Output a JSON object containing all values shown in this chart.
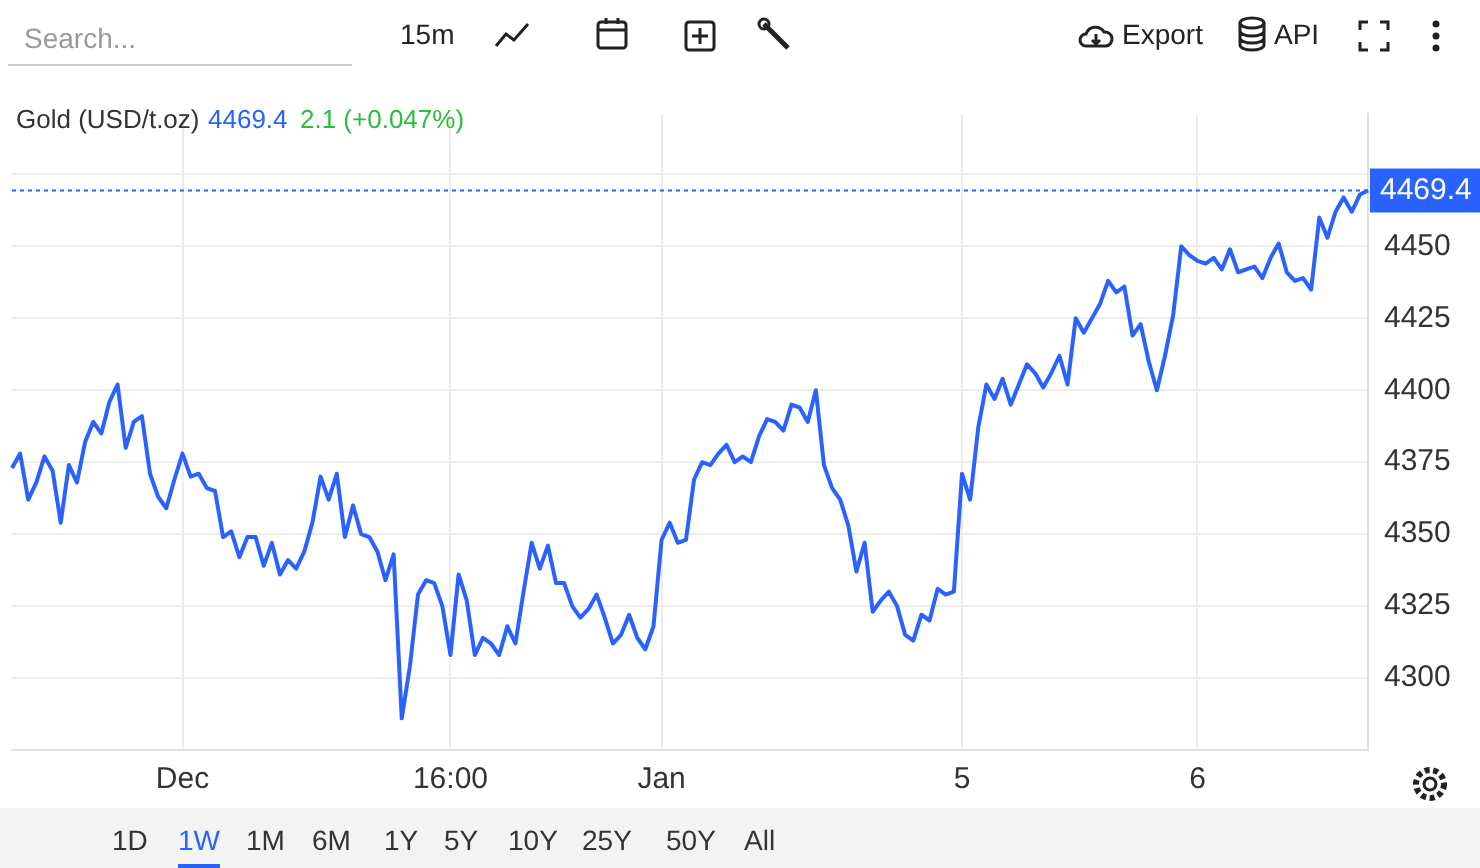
{
  "chart_data": {
    "type": "line",
    "categories": [
      null,
      null,
      null,
      null,
      null,
      null,
      null,
      null,
      null,
      null,
      null,
      null,
      null,
      null,
      null,
      null,
      null,
      null,
      null,
      null,
      null,
      "Dec",
      null,
      null,
      null,
      null,
      null,
      null,
      null,
      null,
      null,
      null,
      null,
      null,
      null,
      null,
      null,
      null,
      null,
      null,
      null,
      null,
      null,
      null,
      null,
      null,
      null,
      null,
      null,
      null,
      null,
      null,
      null,
      null,
      "16:00",
      null,
      null,
      null,
      null,
      null,
      null,
      null,
      null,
      null,
      null,
      null,
      null,
      null,
      null,
      null,
      null,
      null,
      null,
      null,
      null,
      null,
      null,
      null,
      null,
      null,
      "Jan",
      null,
      null,
      null,
      null,
      null,
      null,
      null,
      null,
      null,
      null,
      null,
      null,
      null,
      null,
      null,
      null,
      null,
      null,
      null,
      null,
      null,
      null,
      null,
      null,
      null,
      null,
      null,
      null,
      null,
      null,
      null,
      null,
      null,
      null,
      null,
      null,
      "5",
      null,
      null,
      null,
      null,
      null,
      null,
      null,
      null,
      null,
      null,
      null,
      null,
      null,
      null,
      null,
      null,
      null,
      null,
      null,
      null,
      null,
      null,
      null,
      null,
      null,
      null,
      null,
      null,
      "6",
      null,
      null,
      null,
      null,
      null,
      null,
      null,
      null,
      null,
      null,
      null,
      null,
      null,
      null,
      null,
      null,
      null,
      null,
      null,
      null,
      null
    ],
    "values": [
      4373,
      4378,
      4362,
      4368,
      4377,
      4372,
      4354,
      4374,
      4368,
      4382,
      4389,
      4385,
      4396,
      4402,
      4380,
      4389,
      4391,
      4371,
      4363,
      4359,
      4369,
      4378,
      4370,
      4371,
      4366,
      4365,
      4349,
      4351,
      4342,
      4349,
      4349,
      4339,
      4347,
      4336,
      4341,
      4338,
      4344,
      4354,
      4370,
      4362,
      4371,
      4349,
      4360,
      4350,
      4349,
      4344,
      4334,
      4343,
      4286,
      4304,
      4329,
      4334,
      4333,
      4325,
      4308,
      4336,
      4327,
      4308,
      4314,
      4312,
      4308,
      4318,
      4312,
      4330,
      4347,
      4338,
      4346,
      4333,
      4333,
      4325,
      4321,
      4324,
      4329,
      4321,
      4312,
      4315,
      4322,
      4314,
      4310,
      4318,
      4348,
      4354,
      4347,
      4348,
      4369,
      4375,
      4374,
      4378,
      4381,
      4375,
      4377,
      4375,
      4384,
      4390,
      4389,
      4386,
      4395,
      4394,
      4389,
      4400,
      4374,
      4366,
      4362,
      4353,
      4337,
      4347,
      4323,
      4327,
      4330,
      4325,
      4315,
      4313,
      4322,
      4320,
      4331,
      4329,
      4330,
      4371,
      4362,
      4387,
      4402,
      4397,
      4404,
      4395,
      4402,
      4409,
      4406,
      4401,
      4406,
      4412,
      4402,
      4425,
      4420,
      4425,
      4430,
      4438,
      4434,
      4436,
      4419,
      4423,
      4410,
      4400,
      4412,
      4426,
      4450,
      4447,
      4445,
      4444,
      4446,
      4442,
      4449,
      4441,
      4442,
      4443,
      4439,
      4446,
      4451,
      4441,
      4438,
      4439,
      4435,
      4460,
      4453,
      4462,
      4467,
      4462,
      4468,
      4469.4
    ],
    "color": "#2962ff",
    "ylim": [
      4275,
      4496
    ],
    "yticks": [
      4300,
      4325,
      4350,
      4375,
      4400,
      4425,
      4450,
      {
        "value": 4475,
        "label": null
      }
    ],
    "grid": true,
    "legend": false,
    "marker": "none",
    "line_style": "solid",
    "ref_lines": [
      {
        "axis": "y",
        "value": 4469.4,
        "label": "4469.4",
        "color": "#2962ff",
        "line_style": "dotted"
      }
    ],
    "annotations": [
      "Gold (USD/t.oz)",
      "4469.4",
      "2.1 (+0.047%)",
      "Search...",
      "15m",
      "Export",
      "API",
      "1D",
      "1W",
      "1M",
      "6M",
      "1Y",
      "5Y",
      "10Y",
      "25Y",
      "50Y",
      "All"
    ]
  }
}
